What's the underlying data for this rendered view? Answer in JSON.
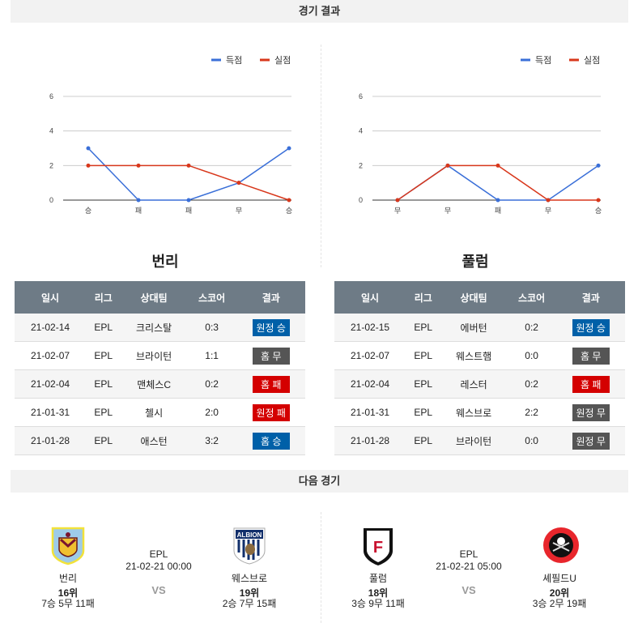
{
  "sections": {
    "results": "경기 결과",
    "next": "다음 경기"
  },
  "legend": {
    "scored": "득점",
    "conceded": "실점"
  },
  "colors": {
    "scored": "#3a6fd8",
    "conceded": "#d8371b",
    "win": "#0060a8",
    "draw": "#555555",
    "loss": "#d40000",
    "header": "#6e7b86"
  },
  "chart_data": [
    {
      "type": "line",
      "categories": [
        "승",
        "패",
        "패",
        "무",
        "승"
      ],
      "yticks": [
        0,
        2,
        4,
        6
      ],
      "ylim": [
        0,
        6
      ],
      "series": [
        {
          "name": "득점",
          "values": [
            3,
            0,
            0,
            1,
            3
          ]
        },
        {
          "name": "실점",
          "values": [
            2,
            2,
            2,
            1,
            0
          ]
        }
      ]
    },
    {
      "type": "line",
      "categories": [
        "무",
        "무",
        "패",
        "무",
        "승"
      ],
      "yticks": [
        0,
        2,
        4,
        6
      ],
      "ylim": [
        0,
        6
      ],
      "series": [
        {
          "name": "득점",
          "values": [
            0,
            2,
            0,
            0,
            2
          ]
        },
        {
          "name": "실점",
          "values": [
            0,
            2,
            2,
            0,
            0
          ]
        }
      ]
    }
  ],
  "columns": [
    "일시",
    "리그",
    "상대팀",
    "스코어",
    "결과"
  ],
  "teams": [
    {
      "name": "번리",
      "rows": [
        [
          "21-02-14",
          "EPL",
          "크리스탈",
          "0:3",
          "원정 승",
          "win"
        ],
        [
          "21-02-07",
          "EPL",
          "브라이턴",
          "1:1",
          "홈 무",
          "draw"
        ],
        [
          "21-02-04",
          "EPL",
          "맨체스C",
          "0:2",
          "홈 패",
          "loss"
        ],
        [
          "21-01-31",
          "EPL",
          "첼시",
          "2:0",
          "원정 패",
          "loss"
        ],
        [
          "21-01-28",
          "EPL",
          "애스턴",
          "3:2",
          "홈 승",
          "win"
        ]
      ]
    },
    {
      "name": "풀럼",
      "rows": [
        [
          "21-02-15",
          "EPL",
          "에버턴",
          "0:2",
          "원정 승",
          "win"
        ],
        [
          "21-02-07",
          "EPL",
          "웨스트햄",
          "0:0",
          "홈 무",
          "draw"
        ],
        [
          "21-02-04",
          "EPL",
          "레스터",
          "0:2",
          "홈 패",
          "loss"
        ],
        [
          "21-01-31",
          "EPL",
          "웨스브로",
          "2:2",
          "원정 무",
          "draw"
        ],
        [
          "21-01-28",
          "EPL",
          "브라이턴",
          "0:0",
          "원정 무",
          "draw"
        ]
      ]
    }
  ],
  "matches": [
    {
      "league": "EPL",
      "time": "21-02-21 00:00",
      "vs": "VS",
      "home": {
        "name": "번리",
        "rank": "16위",
        "record": "7승 5무 11패"
      },
      "away": {
        "name": "웨스브로",
        "rank": "19위",
        "record": "2승 7무 15패"
      }
    },
    {
      "league": "EPL",
      "time": "21-02-21 05:00",
      "vs": "VS",
      "home": {
        "name": "풀럼",
        "rank": "18위",
        "record": "3승 9무 11패"
      },
      "away": {
        "name": "셰필드U",
        "rank": "20위",
        "record": "3승 2무 19패"
      }
    }
  ]
}
